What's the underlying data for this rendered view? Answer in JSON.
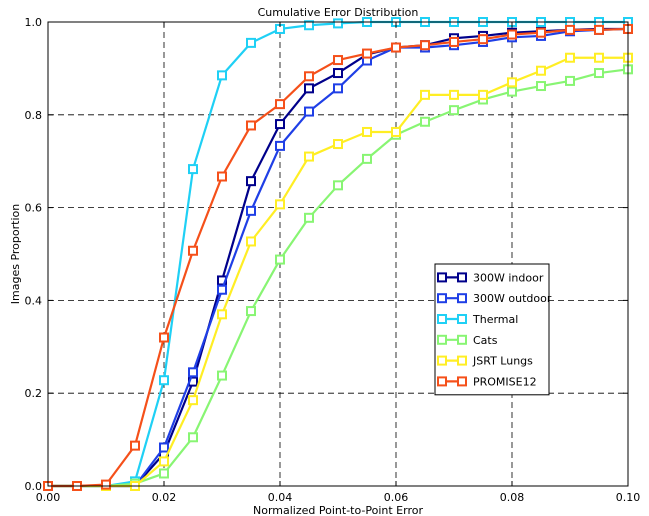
{
  "chart_data": {
    "type": "line",
    "title": "Cumulative Error Distribution",
    "xlabel": "Normalized Point-to-Point Error",
    "ylabel": "Images Proportion",
    "xlim": [
      0.0,
      0.1
    ],
    "ylim": [
      0.0,
      1.0
    ],
    "xticks": [
      "0.00",
      "0.02",
      "0.04",
      "0.06",
      "0.08",
      "0.10"
    ],
    "yticks": [
      "0.0",
      "0.2",
      "0.4",
      "0.6",
      "0.8",
      "1.0"
    ],
    "grid": true,
    "legend_position": "center-right",
    "x": [
      0.0,
      0.005,
      0.01,
      0.015,
      0.02,
      0.025,
      0.03,
      0.035,
      0.04,
      0.045,
      0.05,
      0.055,
      0.06,
      0.065,
      0.07,
      0.075,
      0.08,
      0.085,
      0.09,
      0.095,
      0.1
    ],
    "series": [
      {
        "name": "300W indoor",
        "color": "#00008b",
        "values": [
          0.0,
          0.0,
          0.0,
          0.0,
          0.07,
          0.225,
          0.443,
          0.657,
          0.78,
          0.857,
          0.89,
          0.93,
          0.945,
          0.95,
          0.965,
          0.97,
          0.977,
          0.98,
          0.983,
          0.985,
          0.985
        ]
      },
      {
        "name": "300W outdoor",
        "color": "#1f3fe6",
        "values": [
          0.0,
          0.0,
          0.0,
          0.0,
          0.083,
          0.245,
          0.423,
          0.593,
          0.733,
          0.807,
          0.857,
          0.917,
          0.945,
          0.945,
          0.95,
          0.957,
          0.967,
          0.97,
          0.98,
          0.983,
          0.985
        ]
      },
      {
        "name": "Thermal",
        "color": "#1fd0f5",
        "values": [
          0.0,
          0.0,
          0.0,
          0.01,
          0.228,
          0.683,
          0.885,
          0.955,
          0.985,
          0.993,
          0.997,
          1.0,
          1.0,
          1.0,
          1.0,
          1.0,
          1.0,
          1.0,
          1.0,
          1.0,
          1.0
        ]
      },
      {
        "name": "Cats",
        "color": "#88f573",
        "values": [
          0.0,
          0.0,
          0.0,
          0.005,
          0.027,
          0.105,
          0.238,
          0.377,
          0.488,
          0.578,
          0.648,
          0.705,
          0.757,
          0.785,
          0.81,
          0.833,
          0.85,
          0.862,
          0.873,
          0.89,
          0.898
        ]
      },
      {
        "name": "JSRT Lungs",
        "color": "#ffee24",
        "values": [
          0.0,
          0.0,
          0.0,
          0.0,
          0.053,
          0.185,
          0.37,
          0.527,
          0.607,
          0.71,
          0.737,
          0.763,
          0.763,
          0.843,
          0.843,
          0.843,
          0.87,
          0.895,
          0.923,
          0.923,
          0.923
        ]
      },
      {
        "name": "PROMISE12",
        "color": "#f5501a",
        "values": [
          0.0,
          0.0,
          0.003,
          0.087,
          0.32,
          0.507,
          0.667,
          0.777,
          0.823,
          0.883,
          0.918,
          0.932,
          0.945,
          0.95,
          0.957,
          0.963,
          0.973,
          0.977,
          0.983,
          0.983,
          0.985
        ]
      }
    ]
  }
}
